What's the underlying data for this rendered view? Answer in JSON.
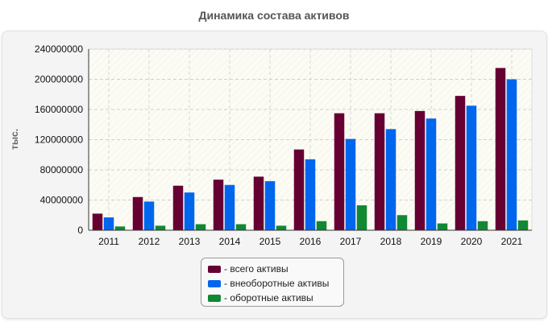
{
  "chart_data": {
    "type": "bar",
    "title": "Динамика состава активов",
    "ylabel": "тыс.",
    "xlabel": "",
    "ylim": [
      0,
      240000000
    ],
    "yticks": [
      0,
      40000000,
      80000000,
      120000000,
      160000000,
      200000000,
      240000000
    ],
    "grid": true,
    "legend_position": "bottom",
    "categories": [
      "2011",
      "2012",
      "2013",
      "2014",
      "2015",
      "2016",
      "2017",
      "2018",
      "2019",
      "2020",
      "2021"
    ],
    "series": [
      {
        "name": "- всего активы",
        "color": "#660033",
        "values": [
          22000000,
          44000000,
          59000000,
          67000000,
          71000000,
          107000000,
          155000000,
          155000000,
          158000000,
          178000000,
          215000000
        ]
      },
      {
        "name": "- внеоборотные активы",
        "color": "#0066ee",
        "values": [
          17000000,
          38000000,
          50000000,
          60000000,
          65000000,
          94000000,
          121000000,
          134000000,
          148000000,
          165000000,
          200000000
        ]
      },
      {
        "name": "- оборотные активы",
        "color": "#118833",
        "values": [
          5000000,
          6000000,
          8000000,
          8000000,
          6000000,
          12000000,
          33000000,
          20000000,
          9000000,
          12000000,
          13000000
        ]
      }
    ]
  }
}
